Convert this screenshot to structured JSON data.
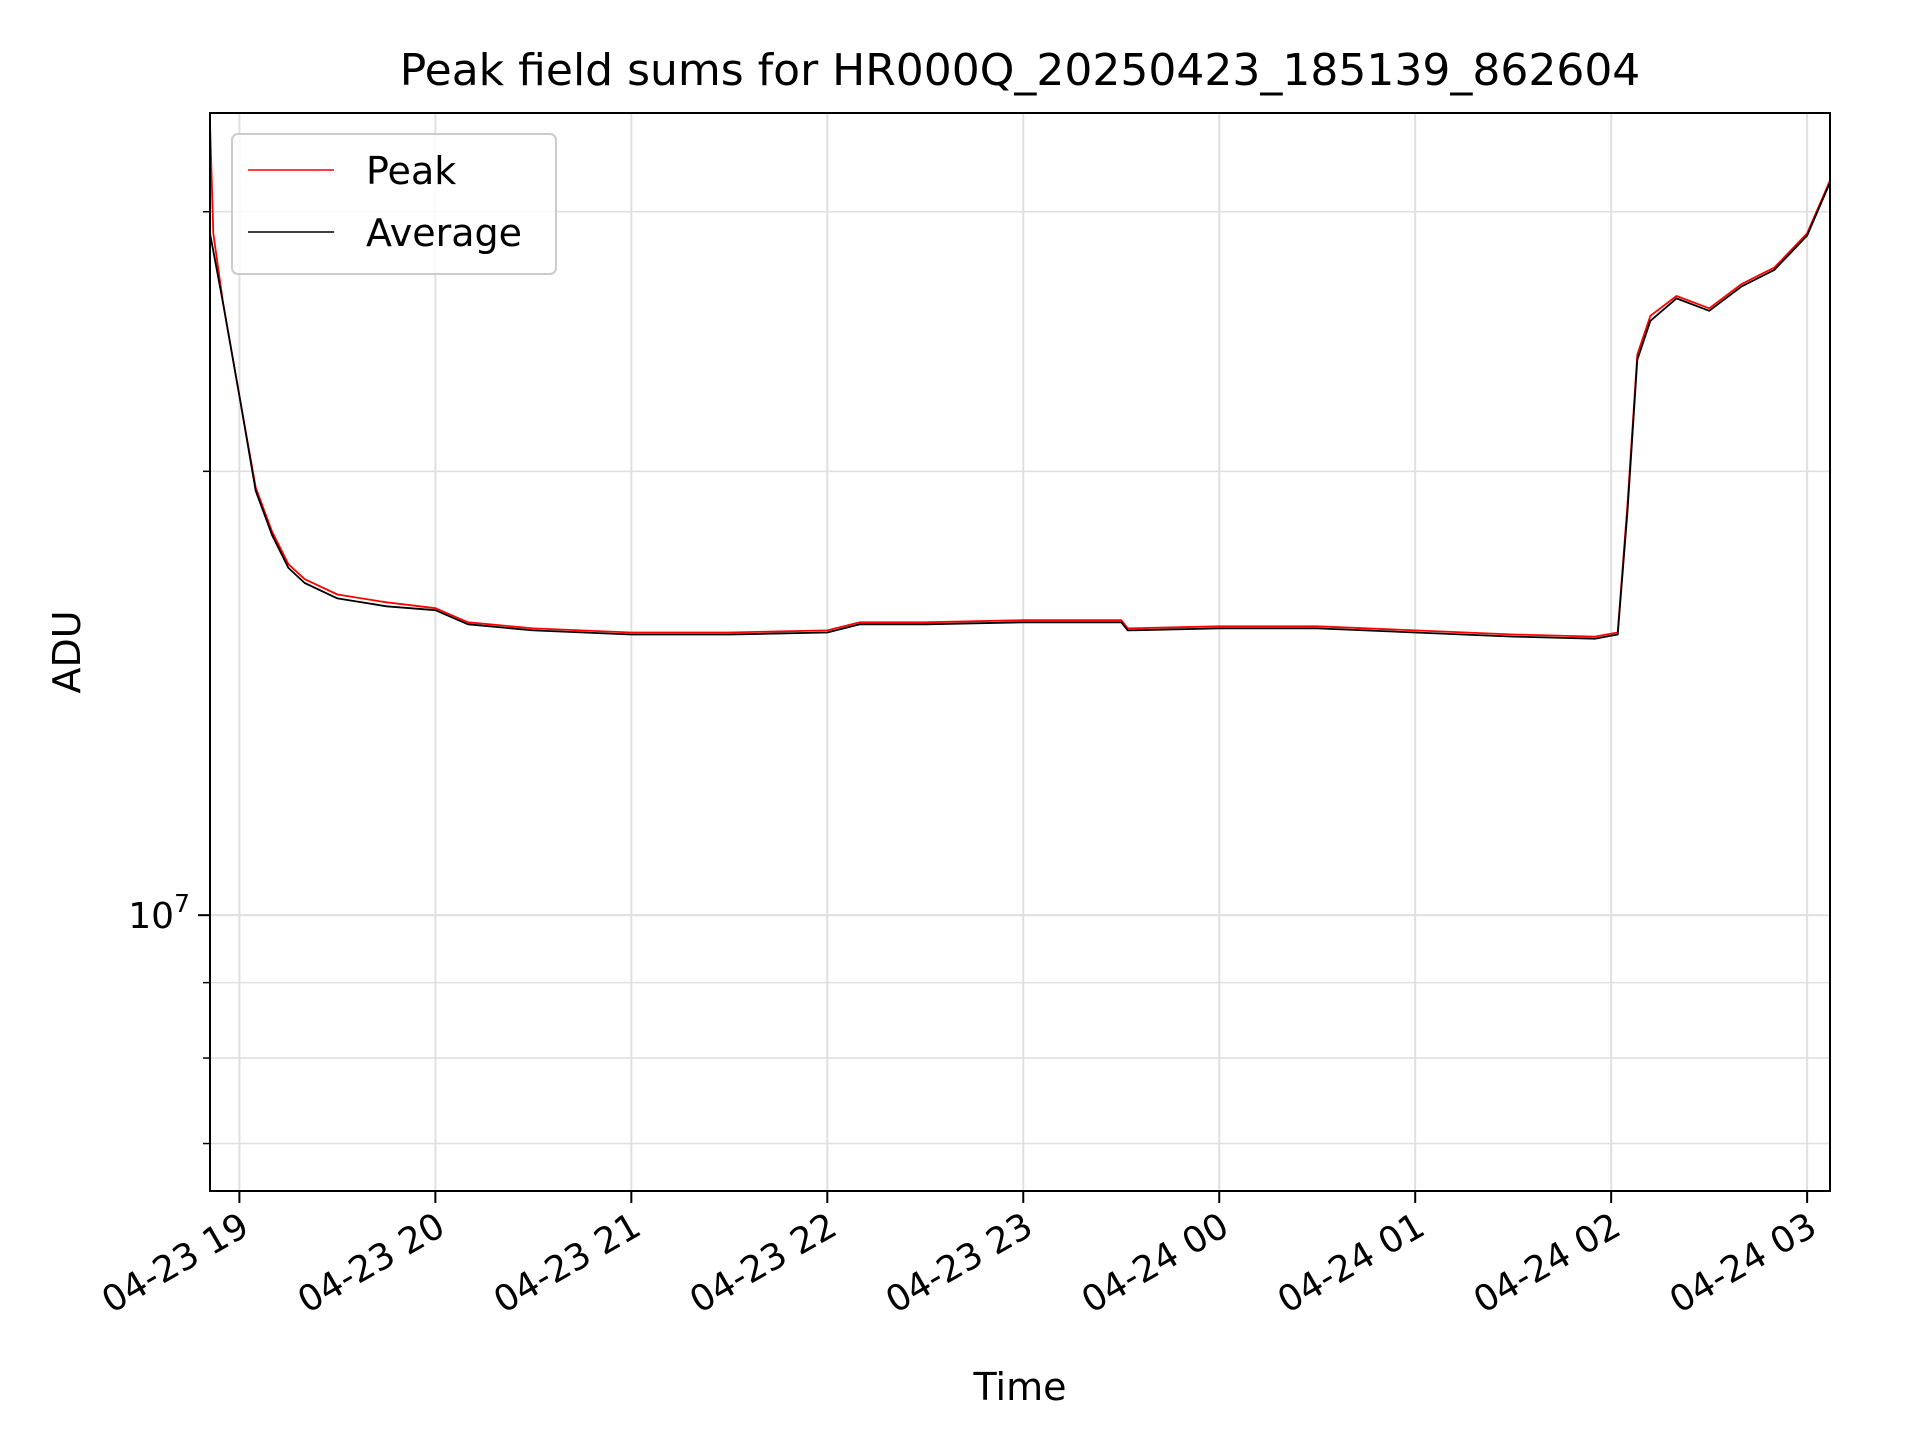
{
  "chart_data": {
    "type": "line",
    "title": "Peak field sums for HR000Q_20250423_185139_862604",
    "xlabel": "Time",
    "ylabel": "ADU",
    "y_scale": "log",
    "ylim": [
      6500000,
      35000000
    ],
    "xlim": [
      "2025-04-23 18:51",
      "2025-04-24 03:07"
    ],
    "grid": true,
    "legend_position": "top-left",
    "x_ticks": [
      {
        "t": "2025-04-23 19:00",
        "label": "04-23 19"
      },
      {
        "t": "2025-04-23 20:00",
        "label": "04-23 20"
      },
      {
        "t": "2025-04-23 21:00",
        "label": "04-23 21"
      },
      {
        "t": "2025-04-23 22:00",
        "label": "04-23 22"
      },
      {
        "t": "2025-04-23 23:00",
        "label": "04-23 23"
      },
      {
        "t": "2025-04-24 00:00",
        "label": "04-24 00"
      },
      {
        "t": "2025-04-24 01:00",
        "label": "04-24 01"
      },
      {
        "t": "2025-04-24 02:00",
        "label": "04-24 02"
      },
      {
        "t": "2025-04-24 03:00",
        "label": "04-24 03"
      }
    ],
    "y_major_ticks": [
      {
        "value": 10000000,
        "base": "10",
        "exponent": "7"
      }
    ],
    "series": [
      {
        "name": "Peak",
        "color": "#ff0000",
        "points": [
          [
            "2025-04-23 18:51",
            34500000
          ],
          [
            "2025-04-23 18:52",
            29000000
          ],
          [
            "2025-04-23 18:55",
            26000000
          ],
          [
            "2025-04-23 19:00",
            22500000
          ],
          [
            "2025-04-23 19:05",
            19500000
          ],
          [
            "2025-04-23 19:10",
            18200000
          ],
          [
            "2025-04-23 19:15",
            17300000
          ],
          [
            "2025-04-23 19:20",
            16900000
          ],
          [
            "2025-04-23 19:30",
            16500000
          ],
          [
            "2025-04-23 19:45",
            16300000
          ],
          [
            "2025-04-23 20:00",
            16150000
          ],
          [
            "2025-04-23 20:10",
            15800000
          ],
          [
            "2025-04-23 20:30",
            15650000
          ],
          [
            "2025-04-23 21:00",
            15550000
          ],
          [
            "2025-04-23 21:30",
            15550000
          ],
          [
            "2025-04-23 22:00",
            15600000
          ],
          [
            "2025-04-23 22:10",
            15800000
          ],
          [
            "2025-04-23 22:30",
            15800000
          ],
          [
            "2025-04-23 23:00",
            15850000
          ],
          [
            "2025-04-23 23:30",
            15850000
          ],
          [
            "2025-04-23 23:32",
            15650000
          ],
          [
            "2025-04-24 00:00",
            15700000
          ],
          [
            "2025-04-24 00:30",
            15700000
          ],
          [
            "2025-04-24 01:00",
            15600000
          ],
          [
            "2025-04-24 01:30",
            15500000
          ],
          [
            "2025-04-24 01:55",
            15450000
          ],
          [
            "2025-04-24 02:02",
            15550000
          ],
          [
            "2025-04-24 02:05",
            19000000
          ],
          [
            "2025-04-24 02:08",
            24000000
          ],
          [
            "2025-04-24 02:12",
            25500000
          ],
          [
            "2025-04-24 02:20",
            26300000
          ],
          [
            "2025-04-24 02:30",
            25800000
          ],
          [
            "2025-04-24 02:40",
            26800000
          ],
          [
            "2025-04-24 02:50",
            27500000
          ],
          [
            "2025-04-24 03:00",
            29000000
          ],
          [
            "2025-04-24 03:07",
            31500000
          ]
        ]
      },
      {
        "name": "Average",
        "color": "#000000",
        "points": [
          [
            "2025-04-23 18:51",
            29000000
          ],
          [
            "2025-04-23 18:55",
            26000000
          ],
          [
            "2025-04-23 19:00",
            22500000
          ],
          [
            "2025-04-23 19:05",
            19400000
          ],
          [
            "2025-04-23 19:10",
            18100000
          ],
          [
            "2025-04-23 19:15",
            17200000
          ],
          [
            "2025-04-23 19:20",
            16800000
          ],
          [
            "2025-04-23 19:30",
            16400000
          ],
          [
            "2025-04-23 19:45",
            16200000
          ],
          [
            "2025-04-23 20:00",
            16100000
          ],
          [
            "2025-04-23 20:10",
            15750000
          ],
          [
            "2025-04-23 20:30",
            15600000
          ],
          [
            "2025-04-23 21:00",
            15500000
          ],
          [
            "2025-04-23 21:30",
            15500000
          ],
          [
            "2025-04-23 22:00",
            15550000
          ],
          [
            "2025-04-23 22:10",
            15750000
          ],
          [
            "2025-04-23 22:30",
            15750000
          ],
          [
            "2025-04-23 23:00",
            15800000
          ],
          [
            "2025-04-23 23:30",
            15800000
          ],
          [
            "2025-04-23 23:32",
            15600000
          ],
          [
            "2025-04-24 00:00",
            15650000
          ],
          [
            "2025-04-24 00:30",
            15650000
          ],
          [
            "2025-04-24 01:00",
            15550000
          ],
          [
            "2025-04-24 01:30",
            15450000
          ],
          [
            "2025-04-24 01:55",
            15400000
          ],
          [
            "2025-04-24 02:02",
            15500000
          ],
          [
            "2025-04-24 02:05",
            18800000
          ],
          [
            "2025-04-24 02:08",
            23800000
          ],
          [
            "2025-04-24 02:12",
            25300000
          ],
          [
            "2025-04-24 02:20",
            26200000
          ],
          [
            "2025-04-24 02:30",
            25700000
          ],
          [
            "2025-04-24 02:40",
            26700000
          ],
          [
            "2025-04-24 02:50",
            27400000
          ],
          [
            "2025-04-24 03:00",
            28900000
          ],
          [
            "2025-04-24 03:07",
            31400000
          ]
        ]
      }
    ]
  }
}
